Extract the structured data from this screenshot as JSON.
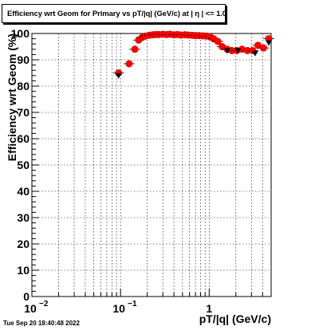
{
  "title": "Efficiency wrt Geom for Primary vs pT/|q| (GeV/c) at |  η | <= 1.0",
  "footer": "Tue Sep 20 18:40:48 2022",
  "colors": {
    "marker_fill": "#ff0000",
    "marker_edge": "#cc0000",
    "ref_marker": "#000000",
    "grid": "#000000",
    "axis": "#000000"
  },
  "chart_data": {
    "type": "scatter",
    "title": "Efficiency wrt Geom for Primary vs pT/|q| (GeV/c) at |  η | <= 1.0",
    "xlabel": "pT/|q| (GeV/c)",
    "ylabel": "Efficiency wrt Geom (%)",
    "xscale": "log",
    "xlim": [
      0.01,
      5.0
    ],
    "ylim": [
      0,
      100
    ],
    "grid": true,
    "x_ticks": [
      {
        "value": 0.01,
        "base": "10",
        "exp": "−2"
      },
      {
        "value": 0.1,
        "base": "10",
        "exp": "−1"
      },
      {
        "value": 1,
        "base": "1",
        "exp": ""
      }
    ],
    "y_ticks": [
      0,
      10,
      20,
      30,
      40,
      50,
      60,
      70,
      80,
      90,
      100
    ],
    "series": [
      {
        "marker": "red-circle",
        "x": [
          0.095,
          0.125,
          0.145,
          0.16,
          0.175,
          0.19,
          0.21,
          0.23,
          0.25,
          0.27,
          0.3,
          0.33,
          0.36,
          0.4,
          0.44,
          0.48,
          0.53,
          0.58,
          0.64,
          0.7,
          0.77,
          0.85,
          0.93,
          1.02,
          1.12,
          1.25,
          1.4,
          1.6,
          1.8,
          2.05,
          2.35,
          2.7,
          3.1,
          3.55,
          4.1,
          4.7
        ],
        "y": [
          85,
          88.5,
          94,
          97.5,
          98.5,
          99,
          99.3,
          99.5,
          99.6,
          99.6,
          99.7,
          99.6,
          99.7,
          99.5,
          99.6,
          99.4,
          99.5,
          99.4,
          99.3,
          99.2,
          99.2,
          99.1,
          99.0,
          98.8,
          98.0,
          97,
          95,
          94,
          93.5,
          93.5,
          94,
          93.5,
          93.5,
          95.5,
          94.5,
          98
        ]
      },
      {
        "marker": "black-triangle-down",
        "x": [
          0.095,
          1.6,
          2.1,
          3.3,
          4.7
        ],
        "y": [
          84,
          93.5,
          93.5,
          92.5,
          96.5
        ]
      }
    ]
  }
}
